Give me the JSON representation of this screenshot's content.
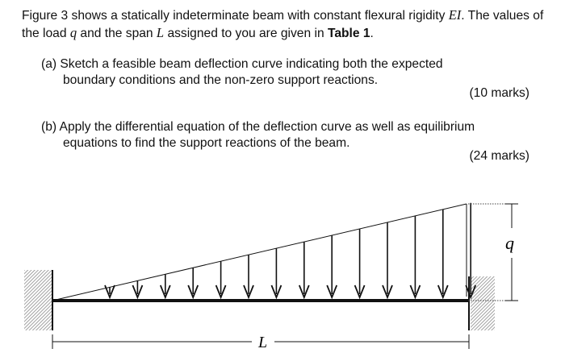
{
  "intro": {
    "t1": "Figure 3 shows a statically indeterminate beam with constant flexural rigidity ",
    "ei": "EI",
    "t2": ". The values of the load ",
    "q": "q",
    "t3": " and the span ",
    "l": "L",
    "t4": " assigned to you are given in ",
    "table": "Table 1",
    "t5": "."
  },
  "part_a": {
    "label": "(a)",
    "line1": "Sketch a feasible beam deflection curve indicating both the expected",
    "line2": "boundary conditions and the non-zero support reactions.",
    "marks": "(10 marks)"
  },
  "part_b": {
    "label": "(b)",
    "line1": "Apply the differential equation of the deflection curve as well as equilibrium",
    "line2": "equations to find the support reactions of the beam.",
    "marks": "(24 marks)"
  },
  "figure": {
    "load_label": "q",
    "span_label": "L"
  }
}
